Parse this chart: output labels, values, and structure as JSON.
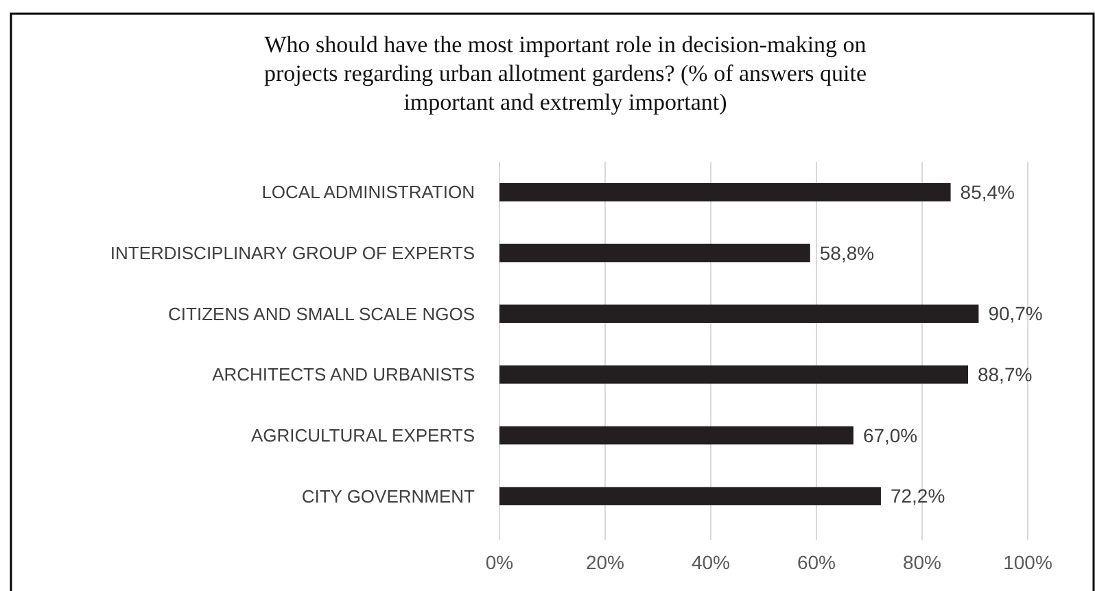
{
  "chart_data": {
    "type": "bar",
    "orientation": "horizontal",
    "title": "Who should have the most important role in decision-making on\nprojects regarding urban allotment gardens? (% of answers quite\nimportant and extremly important)",
    "categories": [
      "LOCAL ADMINISTRATION",
      "INTERDISCIPLINARY GROUP OF EXPERTS",
      "CITIZENS AND SMALL SCALE NGOS",
      "ARCHITECTS AND URBANISTS",
      "AGRICULTURAL EXPERTS",
      "CITY GOVERNMENT"
    ],
    "values": [
      85.4,
      58.8,
      90.7,
      88.7,
      67.0,
      72.2
    ],
    "value_labels": [
      "85,4%",
      "58,8%",
      "90,7%",
      "88,7%",
      "67,0%",
      "72,2%"
    ],
    "color": "#231f20",
    "xlim": [
      0,
      100
    ],
    "xticks": [
      {
        "value": 0,
        "label": "0%"
      },
      {
        "value": 20,
        "label": "20%"
      },
      {
        "value": 40,
        "label": "40%"
      },
      {
        "value": 60,
        "label": "60%"
      },
      {
        "value": 80,
        "label": "80%"
      },
      {
        "value": 100,
        "label": "100%"
      }
    ],
    "grid": "x"
  }
}
